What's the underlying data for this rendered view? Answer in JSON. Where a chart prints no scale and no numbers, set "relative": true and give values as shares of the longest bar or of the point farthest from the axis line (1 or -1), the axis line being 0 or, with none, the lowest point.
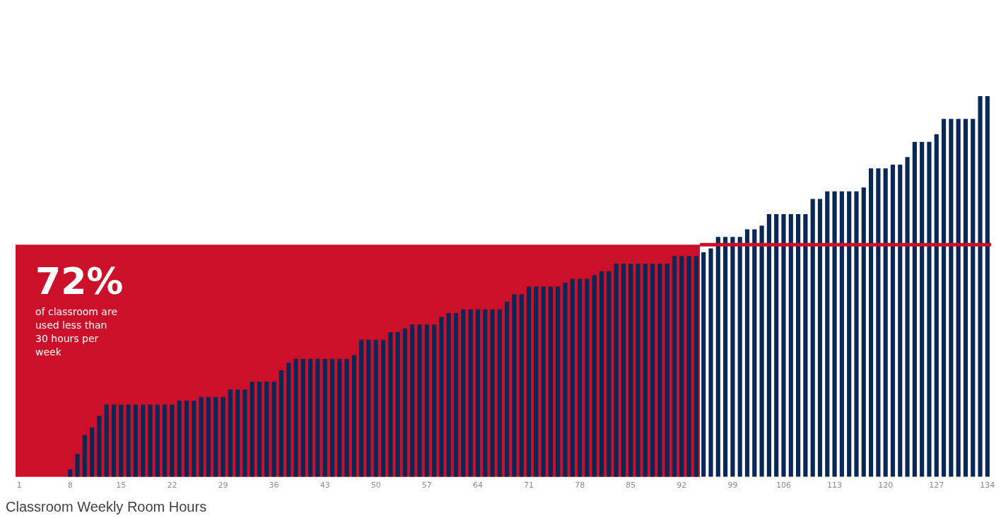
{
  "chart_data": {
    "type": "bar",
    "title": "Classroom Weekly Room Hours",
    "relative": true,
    "x": [
      1,
      2,
      3,
      4,
      5,
      6,
      7,
      8,
      9,
      10,
      11,
      12,
      13,
      14,
      15,
      16,
      17,
      18,
      19,
      20,
      21,
      22,
      23,
      24,
      25,
      26,
      27,
      28,
      29,
      30,
      31,
      32,
      33,
      34,
      35,
      36,
      37,
      38,
      39,
      40,
      41,
      42,
      43,
      44,
      45,
      46,
      47,
      48,
      49,
      50,
      51,
      52,
      53,
      54,
      55,
      56,
      57,
      58,
      59,
      60,
      61,
      62,
      63,
      64,
      65,
      66,
      67,
      68,
      69,
      70,
      71,
      72,
      73,
      74,
      75,
      76,
      77,
      78,
      79,
      80,
      81,
      82,
      83,
      84,
      85,
      86,
      87,
      88,
      89,
      90,
      91,
      92,
      93,
      94,
      95,
      96,
      97,
      98,
      99,
      100,
      101,
      102,
      103,
      104,
      105,
      106,
      107,
      108,
      109,
      110,
      111,
      112,
      113,
      114,
      115,
      116,
      117,
      118,
      119,
      120,
      121,
      122,
      123,
      124,
      125,
      126,
      127,
      128,
      129,
      130,
      131,
      132,
      133,
      134
    ],
    "values": [
      0,
      0,
      0,
      0,
      0,
      0,
      0,
      0.02,
      0.06,
      0.11,
      0.13,
      0.16,
      0.19,
      0.19,
      0.19,
      0.19,
      0.19,
      0.19,
      0.19,
      0.19,
      0.19,
      0.19,
      0.2,
      0.2,
      0.2,
      0.21,
      0.21,
      0.21,
      0.21,
      0.23,
      0.23,
      0.23,
      0.25,
      0.25,
      0.25,
      0.25,
      0.28,
      0.3,
      0.31,
      0.31,
      0.31,
      0.31,
      0.31,
      0.31,
      0.31,
      0.31,
      0.32,
      0.36,
      0.36,
      0.36,
      0.36,
      0.38,
      0.38,
      0.39,
      0.4,
      0.4,
      0.4,
      0.4,
      0.42,
      0.43,
      0.43,
      0.44,
      0.44,
      0.44,
      0.44,
      0.44,
      0.44,
      0.46,
      0.48,
      0.48,
      0.5,
      0.5,
      0.5,
      0.5,
      0.5,
      0.51,
      0.52,
      0.52,
      0.52,
      0.53,
      0.54,
      0.54,
      0.56,
      0.56,
      0.56,
      0.56,
      0.56,
      0.56,
      0.56,
      0.56,
      0.58,
      0.58,
      0.58,
      0.58,
      0.59,
      0.6,
      0.63,
      0.63,
      0.63,
      0.63,
      0.65,
      0.65,
      0.66,
      0.69,
      0.69,
      0.69,
      0.69,
      0.69,
      0.69,
      0.73,
      0.73,
      0.75,
      0.75,
      0.75,
      0.75,
      0.75,
      0.76,
      0.81,
      0.81,
      0.81,
      0.82,
      0.82,
      0.84,
      0.88,
      0.88,
      0.88,
      0.9,
      0.94,
      0.94,
      0.94,
      0.94,
      0.94,
      1,
      1
    ],
    "color": "#0a2857",
    "xlim": [
      0.5,
      134.5
    ],
    "xticks": [
      1,
      8,
      15,
      22,
      29,
      36,
      43,
      50,
      57,
      64,
      71,
      78,
      85,
      92,
      99,
      106,
      113,
      120,
      127,
      134
    ],
    "bands": [
      {
        "axis": "x",
        "from": 0.5,
        "to": 94.5,
        "color": "#cc1029"
      }
    ],
    "ref_lines": [
      {
        "axis": "y",
        "value": 0.61,
        "color": "#cc1029"
      }
    ],
    "annotations": [
      "72%",
      "of classroom are used less than 30 hours per week"
    ],
    "grid": false,
    "legend": false
  }
}
